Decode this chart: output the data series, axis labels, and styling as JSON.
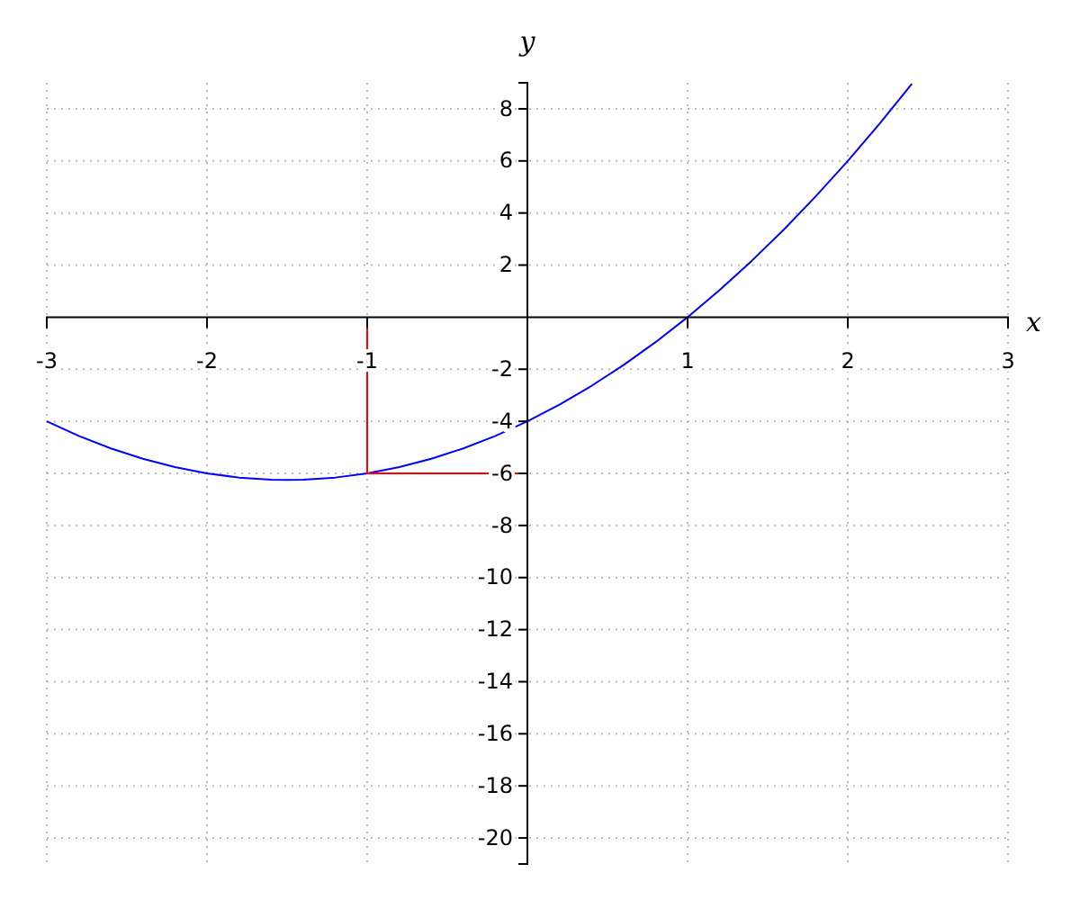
{
  "chart_data": {
    "type": "line",
    "xlabel": "x",
    "ylabel": "y",
    "xlim": [
      -3,
      3
    ],
    "ylim": [
      -21,
      9
    ],
    "xticks": [
      -3,
      -2,
      -1,
      1,
      2,
      3
    ],
    "yticks": [
      -20,
      -18,
      -16,
      -14,
      -12,
      -10,
      -8,
      -6,
      -4,
      -2,
      2,
      4,
      6,
      8
    ],
    "grid": true,
    "series": [
      {
        "color": "#0000ff",
        "x": [
          -3,
          -2.8,
          -2.6,
          -2.4,
          -2.2,
          -2,
          -1.8,
          -1.6,
          -1.5,
          -1.4,
          -1.2,
          -1,
          -0.8,
          -0.6,
          -0.4,
          -0.2,
          0,
          0.2,
          0.4,
          0.6,
          0.8,
          1,
          1.2,
          1.4,
          1.6,
          1.8,
          2,
          2.2,
          2.4
        ],
        "values": [
          -4,
          -4.56,
          -5.04,
          -5.44,
          -5.76,
          -6,
          -6.16,
          -6.24,
          -6.25,
          -6.24,
          -6.16,
          -6,
          -5.76,
          -5.44,
          -5.04,
          -4.56,
          -4,
          -3.36,
          -2.64,
          -1.84,
          -0.96,
          0,
          1.04,
          2.16,
          3.36,
          4.64,
          6,
          7.44,
          8.96
        ]
      },
      {
        "color": "#ff0000",
        "x": [
          -1,
          -1,
          0
        ],
        "values": [
          0,
          -6,
          -6
        ]
      }
    ]
  }
}
